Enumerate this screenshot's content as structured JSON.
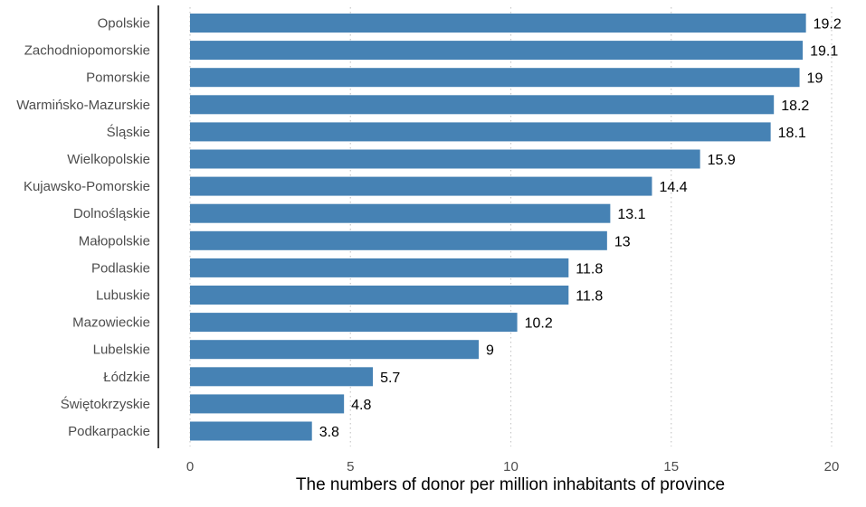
{
  "chart_data": {
    "type": "bar",
    "orientation": "horizontal",
    "title": "",
    "xlabel": "The numbers of donor per million inhabitants of province",
    "ylabel": "",
    "xlim": [
      0,
      20
    ],
    "xticks": [
      0,
      5,
      10,
      15,
      20
    ],
    "grid": "vertical-dotted",
    "bar_color": "#4682B4",
    "categories": [
      "Opolskie",
      "Zachodniopomorskie",
      "Pomorskie",
      "Warmińsko-Mazurskie",
      "Śląskie",
      "Wielkopolskie",
      "Kujawsko-Pomorskie",
      "Dolnośląskie",
      "Małopolskie",
      "Podlaskie",
      "Lubuskie",
      "Mazowieckie",
      "Lubelskie",
      "Łódzkie",
      "Świętokrzyskie",
      "Podkarpackie"
    ],
    "values": [
      19.2,
      19.1,
      19,
      18.2,
      18.1,
      15.9,
      14.4,
      13.1,
      13,
      11.8,
      11.8,
      10.2,
      9,
      5.7,
      4.8,
      3.8
    ],
    "value_labels": [
      "19.2",
      "19.1",
      "19",
      "18.2",
      "18.1",
      "15.9",
      "14.4",
      "13.1",
      "13",
      "11.8",
      "11.8",
      "10.2",
      "9",
      "5.7",
      "4.8",
      "3.8"
    ]
  }
}
